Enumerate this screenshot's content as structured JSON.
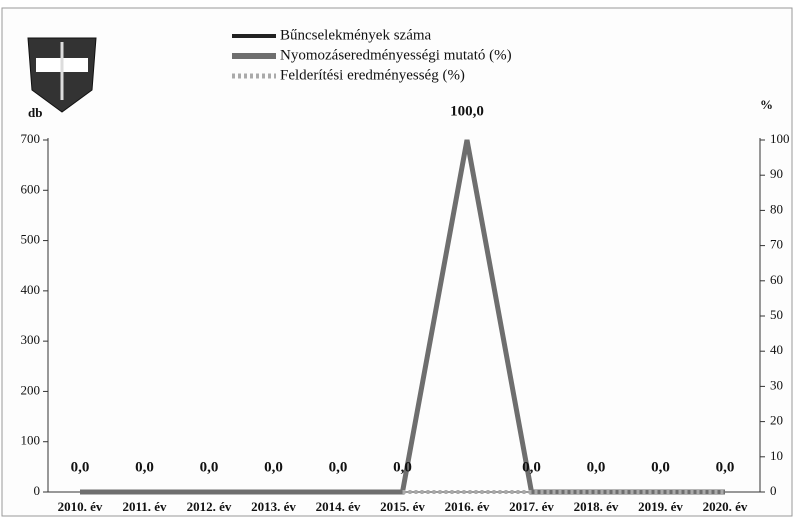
{
  "chart_data": {
    "type": "line",
    "categories": [
      "2010. év",
      "2011. év",
      "2012. év",
      "2013. év",
      "2014. év",
      "2015. év",
      "2016. év",
      "2017. év",
      "2018. év",
      "2019. év",
      "2020. év"
    ],
    "y_label": "db",
    "y2_label": "%",
    "ylim": [
      0,
      700
    ],
    "yticks": [
      0,
      100,
      200,
      300,
      400,
      500,
      600,
      700
    ],
    "y2lim": [
      0,
      100
    ],
    "y2ticks": [
      0,
      10,
      20,
      30,
      40,
      50,
      60,
      70,
      80,
      90,
      100
    ],
    "series": [
      {
        "name": "Bűncselekmények száma",
        "color": "#222222",
        "values": [
          0,
          0,
          0,
          0,
          0,
          0,
          null,
          null,
          null,
          null,
          null
        ]
      },
      {
        "name": "Nyomozáseredményességi mutató (%)",
        "color": "#6e6e6e",
        "axis": "y2",
        "values": [
          0,
          0,
          0,
          0,
          0,
          0,
          100,
          0,
          0,
          0,
          0
        ],
        "value_labels": [
          "0,0",
          "0,0",
          "0,0",
          "0,0",
          "0,0",
          "0,0",
          "100,0",
          "0,0",
          "0,0",
          "0,0",
          "0,0"
        ]
      },
      {
        "name": "Felderítési eredményesség (%)",
        "color": "#aaaaaa",
        "axis": "y2",
        "values": [
          null,
          null,
          null,
          null,
          null,
          0,
          0,
          0,
          0,
          0,
          0
        ]
      }
    ]
  }
}
